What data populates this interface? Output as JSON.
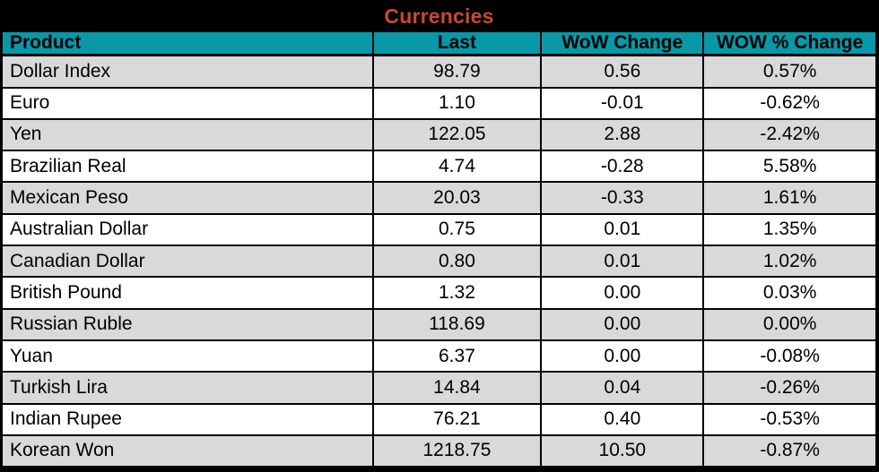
{
  "title": "Currencies",
  "colors": {
    "title_text": "#C8492E",
    "title_bg": "#000000",
    "header_bg": "#0898A8",
    "row_stripe": "#D9D9D9",
    "row_plain": "#FFFFFF",
    "grid": "#000000",
    "text": "#000000"
  },
  "table": {
    "columns": [
      {
        "label": "Product"
      },
      {
        "label": "Last"
      },
      {
        "label": "WoW Change"
      },
      {
        "label": "WOW % Change"
      }
    ],
    "rows": [
      {
        "product": "Dollar Index",
        "last": "98.79",
        "wow_change": "0.56",
        "wow_pct_change": "0.57%"
      },
      {
        "product": "Euro",
        "last": "1.10",
        "wow_change": "-0.01",
        "wow_pct_change": "-0.62%"
      },
      {
        "product": "Yen",
        "last": "122.05",
        "wow_change": "2.88",
        "wow_pct_change": "-2.42%"
      },
      {
        "product": "Brazilian Real",
        "last": "4.74",
        "wow_change": "-0.28",
        "wow_pct_change": "5.58%"
      },
      {
        "product": "Mexican Peso",
        "last": "20.03",
        "wow_change": "-0.33",
        "wow_pct_change": "1.61%"
      },
      {
        "product": "Australian Dollar",
        "last": "0.75",
        "wow_change": "0.01",
        "wow_pct_change": "1.35%"
      },
      {
        "product": "Canadian Dollar",
        "last": "0.80",
        "wow_change": "0.01",
        "wow_pct_change": "1.02%"
      },
      {
        "product": "British Pound",
        "last": "1.32",
        "wow_change": "0.00",
        "wow_pct_change": "0.03%"
      },
      {
        "product": "Russian Ruble",
        "last": "118.69",
        "wow_change": "0.00",
        "wow_pct_change": "0.00%"
      },
      {
        "product": "Yuan",
        "last": "6.37",
        "wow_change": "0.00",
        "wow_pct_change": "-0.08%"
      },
      {
        "product": "Turkish Lira",
        "last": "14.84",
        "wow_change": "0.04",
        "wow_pct_change": "-0.26%"
      },
      {
        "product": "Indian Rupee",
        "last": "76.21",
        "wow_change": "0.40",
        "wow_pct_change": "-0.53%"
      },
      {
        "product": "Korean Won",
        "last": "1218.75",
        "wow_change": "10.50",
        "wow_pct_change": "-0.87%"
      }
    ]
  },
  "chart_data": {
    "type": "table",
    "title": "Currencies",
    "columns": [
      "Product",
      "Last",
      "WoW Change",
      "WOW % Change"
    ],
    "rows": [
      [
        "Dollar Index",
        98.79,
        0.56,
        0.57
      ],
      [
        "Euro",
        1.1,
        -0.01,
        -0.62
      ],
      [
        "Yen",
        122.05,
        2.88,
        -2.42
      ],
      [
        "Brazilian Real",
        4.74,
        -0.28,
        5.58
      ],
      [
        "Mexican Peso",
        20.03,
        -0.33,
        1.61
      ],
      [
        "Australian Dollar",
        0.75,
        0.01,
        1.35
      ],
      [
        "Canadian Dollar",
        0.8,
        0.01,
        1.02
      ],
      [
        "British Pound",
        1.32,
        0.0,
        0.03
      ],
      [
        "Russian Ruble",
        118.69,
        0.0,
        0.0
      ],
      [
        "Yuan",
        6.37,
        0.0,
        -0.08
      ],
      [
        "Turkish Lira",
        14.84,
        0.04,
        -0.26
      ],
      [
        "Indian Rupee",
        76.21,
        0.4,
        -0.53
      ],
      [
        "Korean Won",
        1218.75,
        10.5,
        -0.87
      ]
    ],
    "notes": "WOW % Change column values are percentages; striped rows alternate gray/white starting gray."
  }
}
